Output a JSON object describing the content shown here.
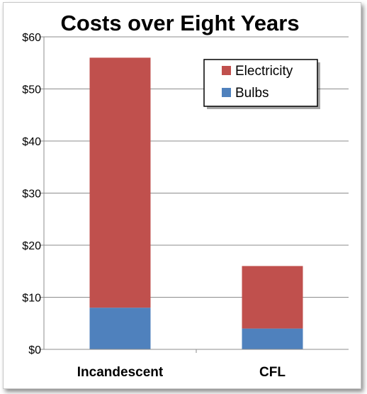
{
  "chart_data": {
    "type": "bar",
    "stacked": true,
    "title": "Costs over Eight Years",
    "categories": [
      "Incandescent",
      "CFL"
    ],
    "series": [
      {
        "name": "Bulbs",
        "values": [
          8,
          4
        ],
        "color": "#4f81bd"
      },
      {
        "name": "Electricity",
        "values": [
          48,
          12
        ],
        "color": "#c0504d"
      }
    ],
    "yticks": [
      "$0",
      "$10",
      "$20",
      "$30",
      "$40",
      "$50",
      "$60"
    ],
    "ylim": [
      0,
      60
    ],
    "grid": true,
    "legend": {
      "position": "top-right",
      "entries": [
        "Electricity",
        "Bulbs"
      ]
    }
  }
}
